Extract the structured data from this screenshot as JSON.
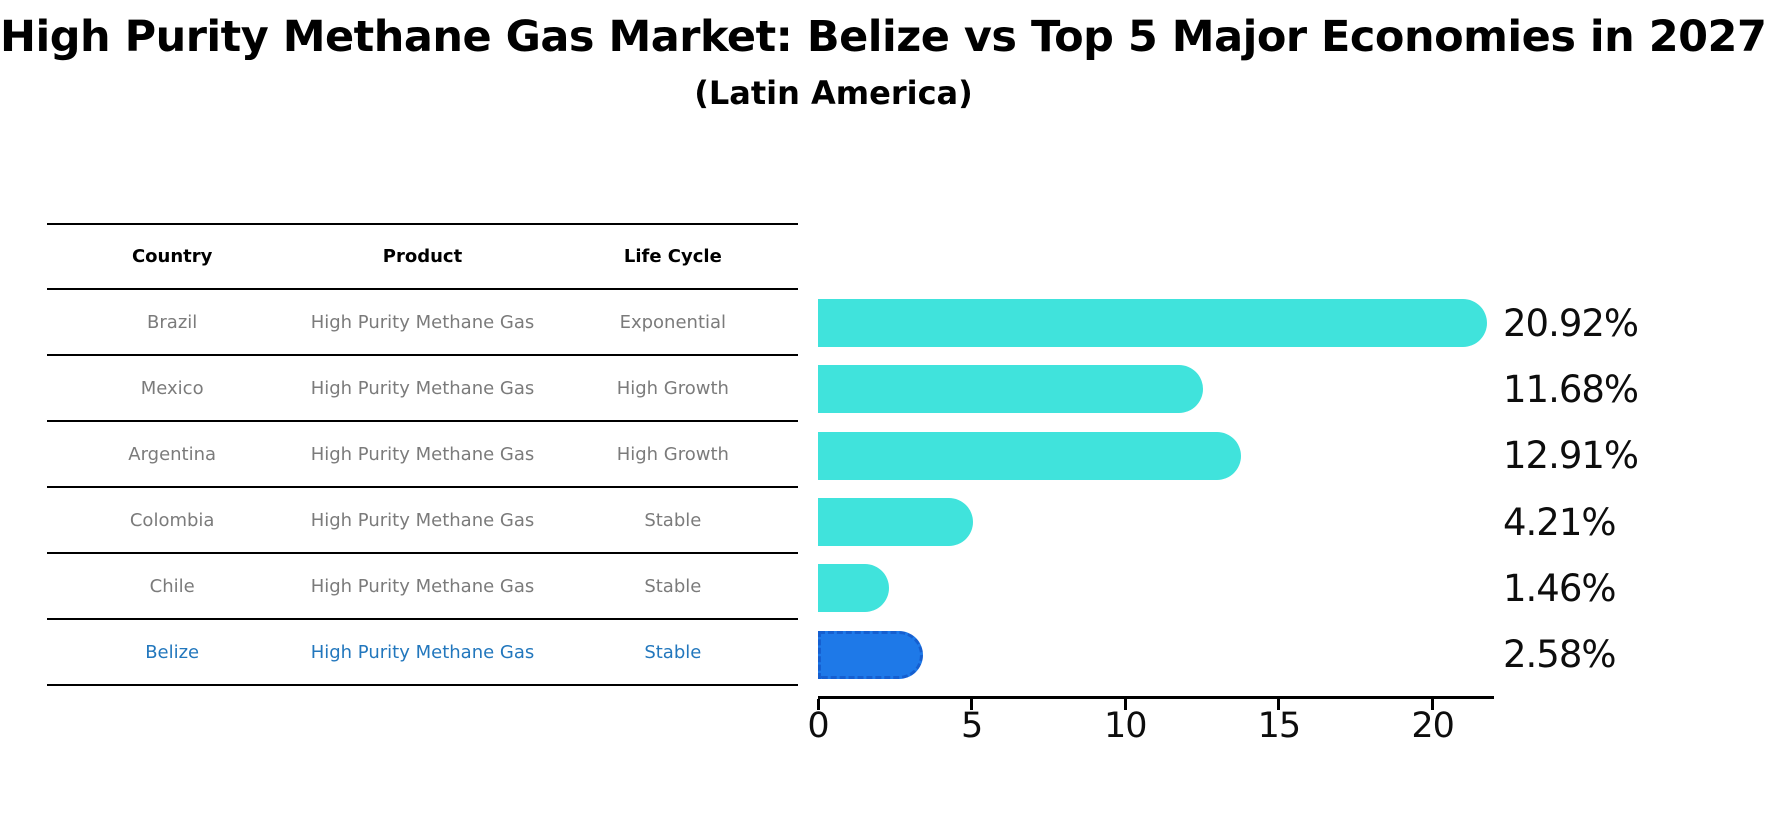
{
  "title": "High Purity Methane Gas Market: Belize vs Top 5 Major Economies in 2027",
  "subtitle": "(Latin America)",
  "table": {
    "headers": [
      "Country",
      "Product",
      "Life Cycle"
    ],
    "rows": [
      {
        "country": "Brazil",
        "product": "High Purity Methane Gas",
        "life_cycle": "Exponential",
        "highlight": false
      },
      {
        "country": "Mexico",
        "product": "High Purity Methane Gas",
        "life_cycle": "High Growth",
        "highlight": false
      },
      {
        "country": "Argentina",
        "product": "High Purity Methane Gas",
        "life_cycle": "High Growth",
        "highlight": false
      },
      {
        "country": "Colombia",
        "product": "High Purity Methane Gas",
        "life_cycle": "Stable",
        "highlight": false
      },
      {
        "country": "Chile",
        "product": "High Purity Methane Gas",
        "life_cycle": "Stable",
        "highlight": false
      },
      {
        "country": "Belize",
        "product": "High Purity Methane Gas",
        "life_cycle": "Stable",
        "highlight": true
      }
    ]
  },
  "chart_data": {
    "type": "bar",
    "orientation": "horizontal",
    "categories": [
      "Brazil",
      "Mexico",
      "Argentina",
      "Colombia",
      "Chile",
      "Belize"
    ],
    "values": [
      20.92,
      11.68,
      12.91,
      4.21,
      1.46,
      2.58
    ],
    "value_labels": [
      "20.92%",
      "11.68%",
      "12.91%",
      "4.21%",
      "1.46%",
      "2.58%"
    ],
    "highlight_index": 5,
    "xlim": [
      0,
      22
    ],
    "x_ticks": [
      0,
      5,
      10,
      15,
      20
    ],
    "grid": false,
    "legend": false,
    "title": "High Purity Methane Gas Market: Belize vs Top 5 Major Economies in 2027",
    "subtitle": "(Latin America)"
  },
  "colors": {
    "bar": "#40E3DC",
    "highlight_bar": "#1E79E8",
    "highlight_bar_border": "#155FD0",
    "highlight_text": "#2277BD",
    "muted_text": "#7B7B7B",
    "text": "#000000",
    "background": "#FFFFFF"
  }
}
